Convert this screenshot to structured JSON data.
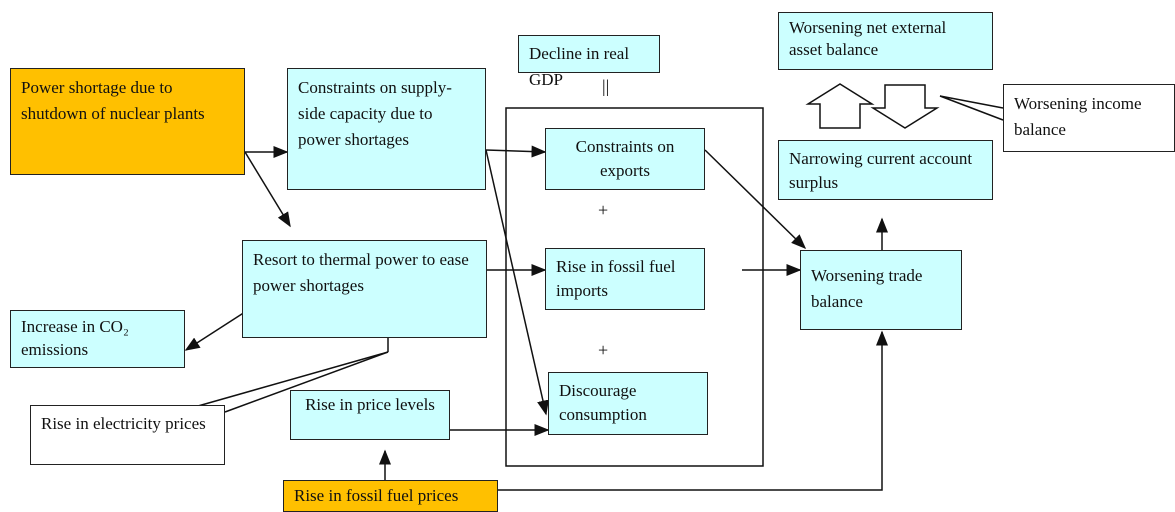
{
  "nodes": [
    {
      "label": "Power shortage due to shutdown of nuclear plants"
    },
    {
      "label": "Constraints on supply-side capacity due to power shortages"
    },
    {
      "label": "Decline in real GDP"
    },
    {
      "label": "Constraints on exports"
    },
    {
      "label": "Rise in fossil fuel imports"
    },
    {
      "label": "Discourage consumption"
    },
    {
      "label": "Resort to thermal power to ease power shortages"
    },
    {
      "label": "Increase in CO₂ emissions"
    },
    {
      "label": "Rise in electricity prices"
    },
    {
      "label": "Rise in price levels"
    },
    {
      "label": "Rise in fossil fuel prices"
    },
    {
      "label": "Worsening net external asset balance"
    },
    {
      "label": "Worsening income balance"
    },
    {
      "label": "Narrowing current account surplus"
    },
    {
      "label": "Worsening trade balance"
    }
  ],
  "symbols": {
    "equals": "||",
    "plus": [
      "+",
      "+"
    ]
  }
}
